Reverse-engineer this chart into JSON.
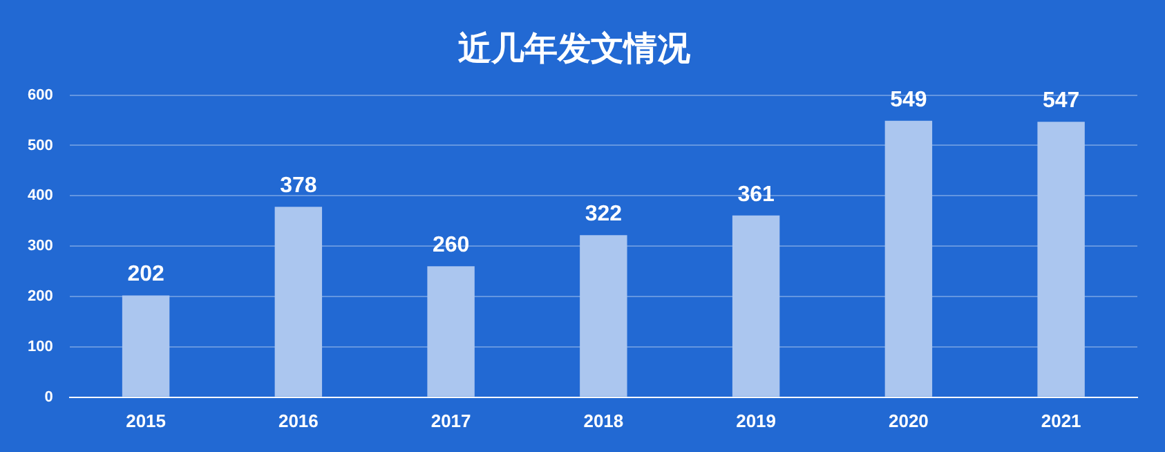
{
  "chart_data": {
    "type": "bar",
    "title": "近几年发文情况",
    "categories": [
      "2015",
      "2016",
      "2017",
      "2018",
      "2019",
      "2020",
      "2021"
    ],
    "values": [
      202,
      378,
      260,
      322,
      361,
      549,
      547
    ],
    "color": "#abc6ef",
    "ylim": [
      0,
      600
    ],
    "yticks": [
      0,
      100,
      200,
      300,
      400,
      500,
      600
    ],
    "grid": "y",
    "data_labels": true
  }
}
